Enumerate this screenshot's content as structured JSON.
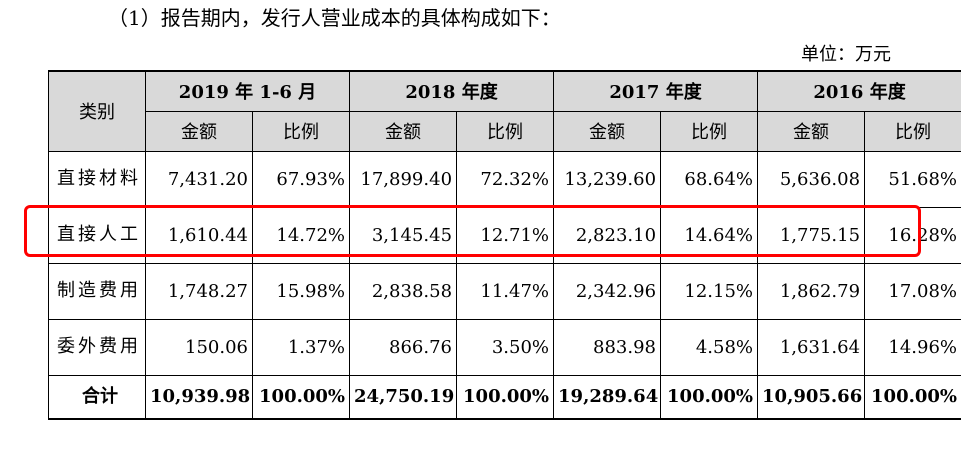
{
  "intro": "（1）报告期内，发行人营业成本的具体构成如下：",
  "unit": "单位：万元",
  "table": {
    "category_header": "类别",
    "periods": [
      "2019 年 1-6 月",
      "2018 年度",
      "2017 年度",
      "2016 年度"
    ],
    "amount_label": "金额",
    "ratio_label": "比例",
    "rows": [
      {
        "label": "直接材料",
        "cells": [
          "7,431.20",
          "67.93%",
          "17,899.40",
          "72.32%",
          "13,239.60",
          "68.64%",
          "5,636.08",
          "51.68%"
        ]
      },
      {
        "label": "直接人工",
        "cells": [
          "1,610.44",
          "14.72%",
          "3,145.45",
          "12.71%",
          "2,823.10",
          "14.64%",
          "1,775.15",
          "16.28%"
        ]
      },
      {
        "label": "制造费用",
        "cells": [
          "1,748.27",
          "15.98%",
          "2,838.58",
          "11.47%",
          "2,342.96",
          "12.15%",
          "1,862.79",
          "17.08%"
        ]
      },
      {
        "label": "委外费用",
        "cells": [
          "150.06",
          "1.37%",
          "866.76",
          "3.50%",
          "883.98",
          "4.58%",
          "1,631.64",
          "14.96%"
        ]
      },
      {
        "label": "合计",
        "cells": [
          "10,939.98",
          "100.00%",
          "24,750.19",
          "100.00%",
          "19,289.64",
          "100.00%",
          "10,905.66",
          "100.00%"
        ]
      }
    ]
  },
  "highlight": {
    "row_label": "直接人工",
    "color": "#ff0000"
  },
  "colors": {
    "header_bg": "#d9d9d9"
  }
}
